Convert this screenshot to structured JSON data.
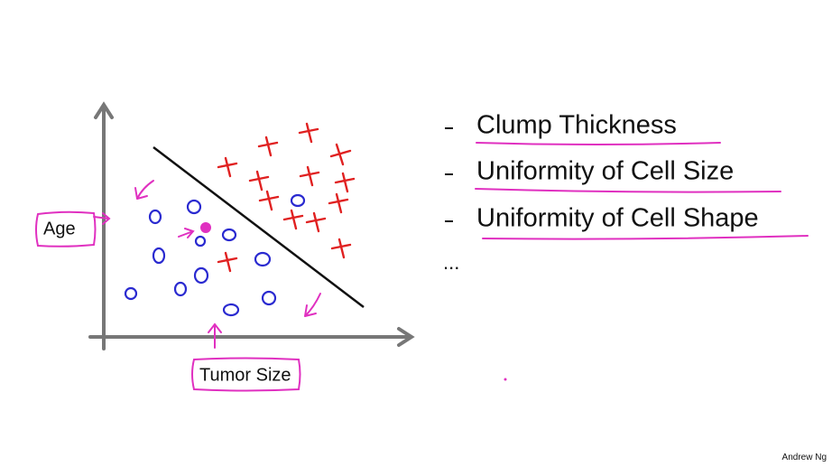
{
  "axes": {
    "y_label": "Age",
    "x_label": "Tumor Size"
  },
  "bullets": [
    "Clump Thickness",
    "Uniformity of Cell Size",
    "Uniformity of Cell Shape",
    "..."
  ],
  "footer": "Andrew Ng"
}
